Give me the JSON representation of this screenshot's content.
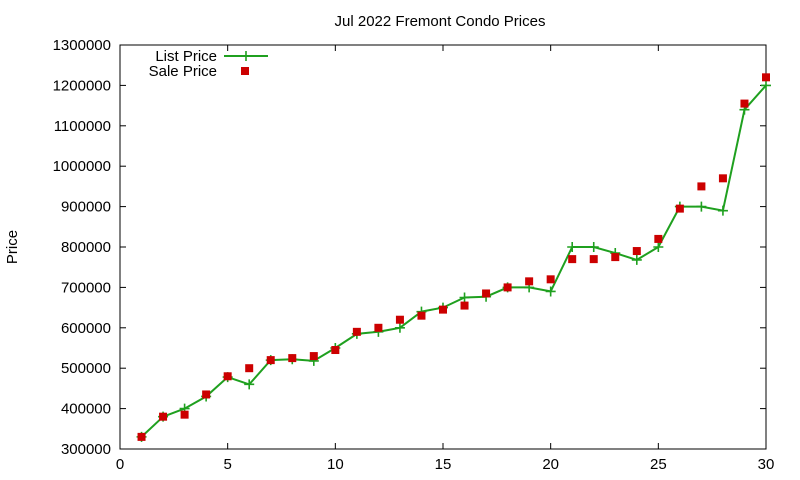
{
  "chart_data": {
    "type": "line",
    "title": "Jul 2022 Fremont Condo Prices",
    "xlabel": "",
    "ylabel": "Price",
    "xlim": [
      0,
      30
    ],
    "ylim": [
      300000,
      1300000
    ],
    "xticks": [
      0,
      5,
      10,
      15,
      20,
      25,
      30
    ],
    "yticks": [
      300000,
      400000,
      500000,
      600000,
      700000,
      800000,
      900000,
      1000000,
      1100000,
      1200000,
      1300000
    ],
    "grid": false,
    "legend_position": "top-left",
    "series": [
      {
        "name": "List Price",
        "style": "line+plus",
        "color": "#1fa01f",
        "x": [
          1,
          2,
          3,
          4,
          5,
          6,
          7,
          8,
          9,
          10,
          11,
          12,
          13,
          14,
          15,
          16,
          17,
          18,
          19,
          20,
          21,
          22,
          23,
          24,
          25,
          26,
          27,
          28,
          29,
          30
        ],
        "values": [
          330000,
          380000,
          400000,
          430000,
          478000,
          460000,
          520000,
          522000,
          518000,
          550000,
          585000,
          590000,
          600000,
          640000,
          650000,
          675000,
          677000,
          700000,
          700000,
          690000,
          800000,
          800000,
          785000,
          768000,
          800000,
          900000,
          900000,
          890000,
          1140000,
          1200000
        ]
      },
      {
        "name": "Sale Price",
        "style": "square",
        "color": "#cc0000",
        "x": [
          1,
          2,
          3,
          4,
          5,
          6,
          7,
          8,
          9,
          10,
          11,
          12,
          13,
          14,
          15,
          16,
          17,
          18,
          19,
          20,
          21,
          22,
          23,
          24,
          25,
          26,
          27,
          28,
          29,
          30
        ],
        "values": [
          330000,
          380000,
          385000,
          435000,
          480000,
          500000,
          520000,
          525000,
          530000,
          545000,
          590000,
          600000,
          620000,
          630000,
          645000,
          655000,
          685000,
          700000,
          715000,
          720000,
          770000,
          770000,
          775000,
          790000,
          820000,
          895000,
          950000,
          970000,
          1155000,
          1220000
        ]
      }
    ]
  }
}
